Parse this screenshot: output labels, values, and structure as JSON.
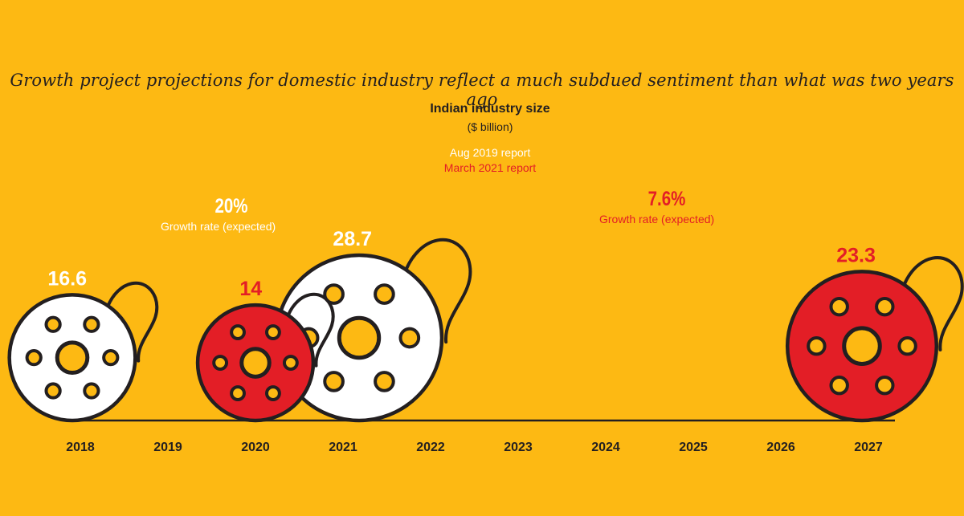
{
  "chart_data": {
    "type": "bar",
    "title": "Growth project projections for domestic industry reflect a much subdued sentiment than what was two years ago",
    "subtitle": "Indian industry size",
    "unit": "($ billion)",
    "categories": [
      "2018",
      "2019",
      "2020",
      "2021",
      "2022",
      "2023",
      "2024",
      "2025",
      "2026",
      "2027"
    ],
    "series": [
      {
        "name": "Aug 2019 report",
        "color": "#FFFFFF",
        "points": [
          {
            "year": "2018",
            "value": 16.6,
            "label": "16.6"
          },
          {
            "year": "2021",
            "value": 28.7,
            "label": "28.7"
          }
        ],
        "growth_rate": "20%",
        "growth_label": "Growth rate (expected)"
      },
      {
        "name": "March 2021 report",
        "color": "#E31E26",
        "points": [
          {
            "year": "2020",
            "value": 14,
            "label": "14"
          },
          {
            "year": "2027",
            "value": 23.3,
            "label": "23.3"
          }
        ],
        "growth_rate": "7.6%",
        "growth_label": "Growth rate (expected)"
      }
    ],
    "legend": "top-center",
    "grid": false
  },
  "colors": {
    "background": "#FDB913",
    "outline": "#231F20",
    "hole_fill": "#FDB913"
  },
  "icon": "film-reel-icon"
}
